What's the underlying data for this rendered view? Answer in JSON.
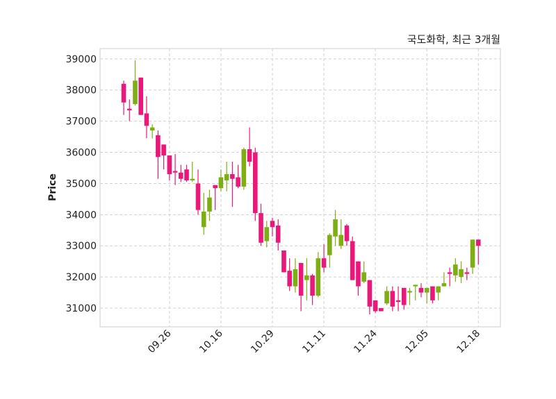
{
  "chart_data": {
    "type": "candlestick",
    "title": "국도화학, 최근 3개월",
    "xlabel": "",
    "ylabel": "Price",
    "ylim": [
      30400,
      39330
    ],
    "yticks": [
      31000,
      32000,
      33000,
      34000,
      35000,
      36000,
      37000,
      38000,
      39000
    ],
    "xtick_labels": [
      {
        "index": 8,
        "label": "09.26"
      },
      {
        "index": 17,
        "label": "10.16"
      },
      {
        "index": 26,
        "label": "10.29"
      },
      {
        "index": 35,
        "label": "11.11"
      },
      {
        "index": 44,
        "label": "11.24"
      },
      {
        "index": 53,
        "label": "12.05"
      },
      {
        "index": 62,
        "label": "12.18"
      }
    ],
    "grid": true,
    "colors": {
      "up": "#7fae14",
      "down": "#e8197a",
      "grid": "#d0d0d0",
      "frame": "#dddddd"
    },
    "ohlc": [
      [
        38200,
        38300,
        37200,
        37600
      ],
      [
        37400,
        37700,
        37000,
        37350
      ],
      [
        37550,
        38950,
        37500,
        38300
      ],
      [
        38400,
        38400,
        37200,
        37200
      ],
      [
        37250,
        37800,
        36450,
        36850
      ],
      [
        36700,
        36900,
        36450,
        36800
      ],
      [
        36550,
        36700,
        35150,
        35850
      ],
      [
        36250,
        36250,
        35450,
        35900
      ],
      [
        35900,
        35900,
        35100,
        35300
      ],
      [
        35400,
        35950,
        34950,
        35350
      ],
      [
        35350,
        35600,
        35050,
        35150
      ],
      [
        35450,
        35600,
        35050,
        35100
      ],
      [
        35100,
        35700,
        35050,
        35150
      ],
      [
        35000,
        35450,
        34000,
        34150
      ],
      [
        33600,
        34700,
        33350,
        34100
      ],
      [
        34100,
        34800,
        33800,
        34550
      ],
      [
        34950,
        34950,
        34150,
        34850
      ],
      [
        34850,
        35450,
        34750,
        35200
      ],
      [
        35100,
        35700,
        34750,
        35300
      ],
      [
        35300,
        35700,
        34250,
        35150
      ],
      [
        35200,
        35600,
        34850,
        34900
      ],
      [
        34900,
        36150,
        34800,
        36100
      ],
      [
        36100,
        36800,
        35550,
        35700
      ],
      [
        36000,
        36150,
        33800,
        34050
      ],
      [
        34050,
        34350,
        33000,
        33100
      ],
      [
        33150,
        33800,
        32950,
        33600
      ],
      [
        33800,
        33900,
        33300,
        33600
      ],
      [
        33650,
        33850,
        32850,
        33100
      ],
      [
        32850,
        32850,
        32150,
        32150
      ],
      [
        32200,
        32600,
        31550,
        31700
      ],
      [
        31700,
        32600,
        31500,
        32250
      ],
      [
        32450,
        32450,
        30900,
        31400
      ],
      [
        31900,
        32600,
        31250,
        32050
      ],
      [
        32050,
        32100,
        31100,
        31400
      ],
      [
        31400,
        32800,
        31350,
        32600
      ],
      [
        32600,
        33050,
        32150,
        32300
      ],
      [
        32700,
        33400,
        32300,
        33350
      ],
      [
        33300,
        34150,
        33000,
        33850
      ],
      [
        33000,
        33850,
        32900,
        33350
      ],
      [
        33650,
        33700,
        33000,
        33150
      ],
      [
        33150,
        33300,
        31900,
        31900
      ],
      [
        32500,
        32500,
        31400,
        31700
      ],
      [
        31850,
        32500,
        31800,
        32150
      ],
      [
        31900,
        31900,
        30800,
        31050
      ],
      [
        31250,
        31250,
        30850,
        30900
      ],
      [
        31000,
        31000,
        30900,
        30900
      ],
      [
        31150,
        31700,
        31100,
        31550
      ],
      [
        31550,
        31700,
        30900,
        31050
      ],
      [
        31250,
        31700,
        30900,
        31200
      ],
      [
        31650,
        31650,
        30950,
        31100
      ],
      [
        31500,
        31650,
        31100,
        31550
      ],
      [
        31700,
        31750,
        31250,
        31750
      ],
      [
        31650,
        31800,
        31350,
        31500
      ],
      [
        31500,
        31650,
        31150,
        31650
      ],
      [
        31700,
        31700,
        31150,
        31250
      ],
      [
        31500,
        31700,
        31250,
        31700
      ],
      [
        31700,
        32150,
        31700,
        31800
      ],
      [
        32150,
        32300,
        31700,
        32100
      ],
      [
        32050,
        32600,
        31850,
        32400
      ],
      [
        32000,
        32500,
        31800,
        32250
      ],
      [
        32150,
        32300,
        31900,
        32100
      ],
      [
        32300,
        33200,
        32100,
        33200
      ],
      [
        33200,
        33200,
        32400,
        33000
      ]
    ]
  }
}
